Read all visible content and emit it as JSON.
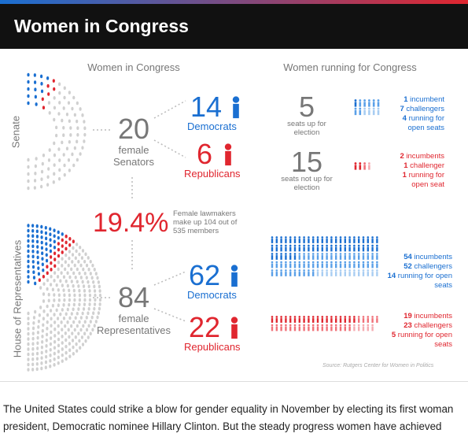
{
  "header": {
    "title": "Women in Congress"
  },
  "left": {
    "title": "Women in Congress",
    "senate": {
      "label": "Senate",
      "total": 20,
      "total_label": "female Senators",
      "democrats": {
        "count": 14,
        "label": "Democrats"
      },
      "republicans": {
        "count": 6,
        "label": "Republicans"
      }
    },
    "share": {
      "value": "19.4%",
      "note": "Female lawmakers make up 104 out of 535 members"
    },
    "house": {
      "label": "House of Representatives",
      "total": 84,
      "total_label": "female Representatives",
      "democrats": {
        "count": 62,
        "label": "Democrats"
      },
      "republicans": {
        "count": 22,
        "label": "Republicans"
      }
    }
  },
  "right": {
    "title": "Women running for Congress",
    "senate_up": {
      "count": 5,
      "label": "seats up for election"
    },
    "senate_not_up": {
      "count": 15,
      "label": "seats not up for election"
    },
    "senate_dem": [
      {
        "count": 1,
        "label": "incumbent"
      },
      {
        "count": 7,
        "label": "challengers"
      },
      {
        "count": 4,
        "label": "running for open seats"
      }
    ],
    "senate_rep": [
      {
        "count": 2,
        "label": "incumbents"
      },
      {
        "count": 1,
        "label": "challenger"
      },
      {
        "count": 1,
        "label": "running for open seat"
      }
    ],
    "house_dem": [
      {
        "count": 54,
        "label": "incumbents"
      },
      {
        "count": 52,
        "label": "challengers"
      },
      {
        "count": 14,
        "label": "running for open seats"
      }
    ],
    "house_rep": [
      {
        "count": 19,
        "label": "incumbents"
      },
      {
        "count": 23,
        "label": "challengers"
      },
      {
        "count": 5,
        "label": "running for open seats"
      }
    ],
    "source": "Source: Rutgers Center for Women in Politics"
  },
  "body": {
    "text": "The United States could strike a blow for gender equality in November by electing its first woman president, Democratic nominee Hillary Clinton. But the steady progress women have achieved"
  }
}
